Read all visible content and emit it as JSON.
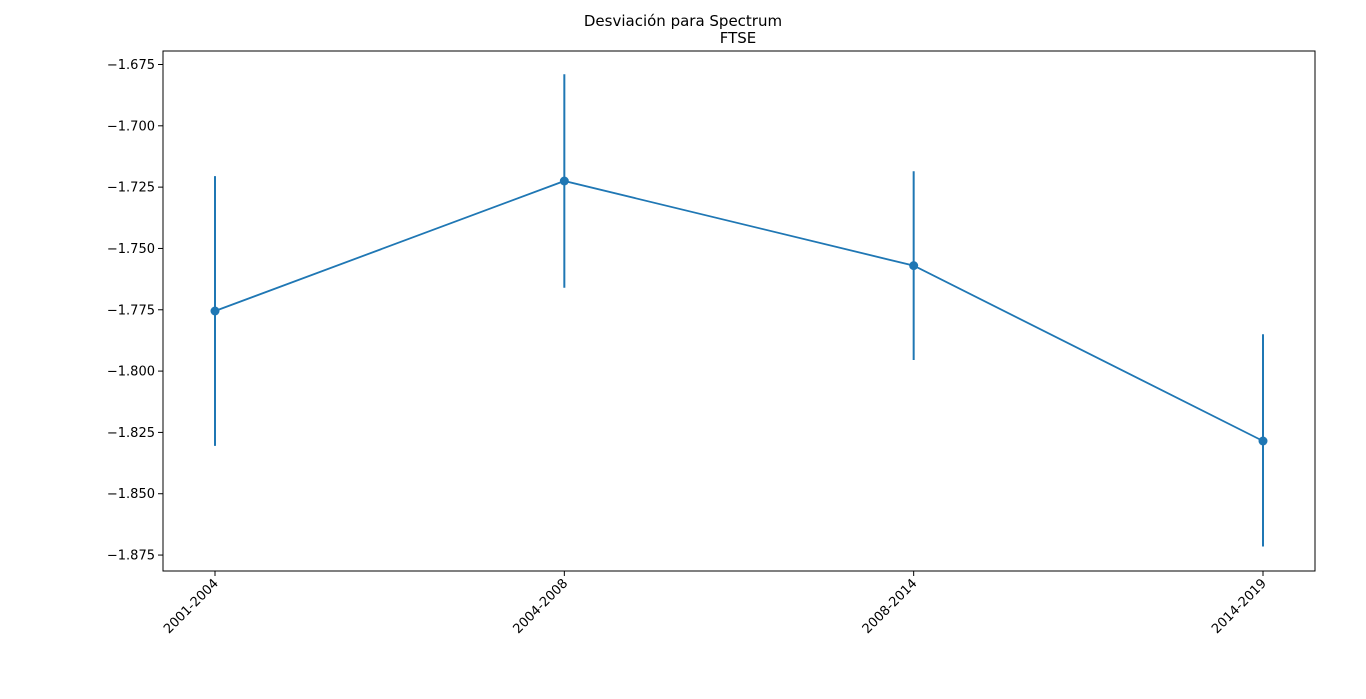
{
  "chart_data": {
    "type": "line",
    "suptitle": "Desviación para Spectrum",
    "title": "FTSE",
    "xlabel": "",
    "ylabel": "",
    "categories": [
      "2001-2004",
      "2004-2008",
      "2008-2014",
      "2014-2019"
    ],
    "series": [
      {
        "values": [
          -1.7755,
          -1.7225,
          -1.757,
          -1.8285
        ],
        "error_low": [
          -1.8305,
          -1.766,
          -1.7955,
          -1.8715
        ],
        "error_high": [
          -1.7205,
          -1.679,
          -1.7185,
          -1.785
        ],
        "color": "#1f77b4",
        "marker": "circle"
      }
    ],
    "ylim": [
      -1.8815,
      -1.6695
    ],
    "yticks": [
      -1.875,
      -1.85,
      -1.825,
      -1.8,
      -1.775,
      -1.75,
      -1.725,
      -1.7,
      -1.675
    ],
    "ytick_labels": [
      "−1.875",
      "−1.850",
      "−1.825",
      "−1.800",
      "−1.775",
      "−1.750",
      "−1.725",
      "−1.700",
      "−1.675"
    ],
    "xtick_rotation": 45,
    "grid": false,
    "legend": "none"
  }
}
